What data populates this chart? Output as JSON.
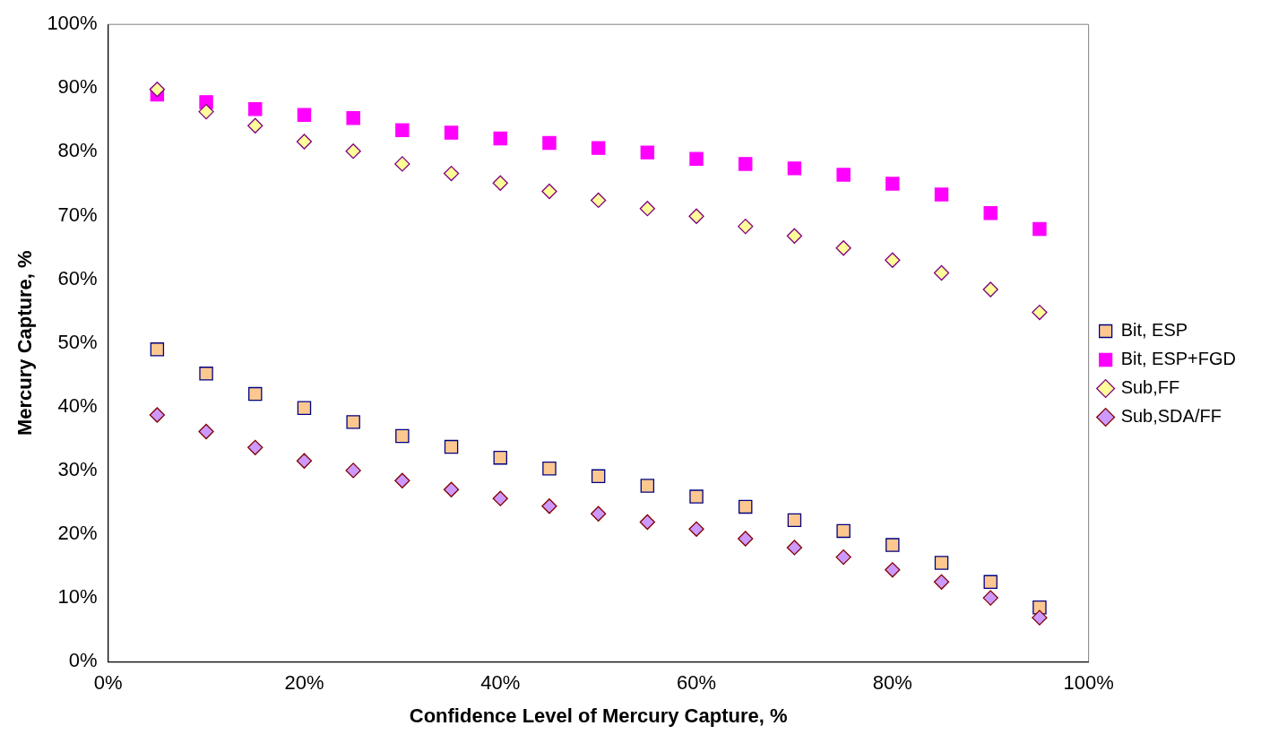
{
  "chart_data": {
    "type": "scatter",
    "xlabel": "Confidence Level of Mercury Capture, %",
    "ylabel": "Mercury Capture, %",
    "xlim": [
      0,
      100
    ],
    "xticks": [
      {
        "value": 0,
        "label": "0%"
      },
      {
        "value": 20,
        "label": "20%"
      },
      {
        "value": 40,
        "label": "40%"
      },
      {
        "value": 60,
        "label": "60%"
      },
      {
        "value": 80,
        "label": "80%"
      },
      {
        "value": 100,
        "label": "100%"
      }
    ],
    "ylim": [
      0,
      100
    ],
    "yticks": [
      {
        "value": 0,
        "label": "0%"
      },
      {
        "value": 10,
        "label": "10%"
      },
      {
        "value": 20,
        "label": "20%"
      },
      {
        "value": 30,
        "label": "30%"
      },
      {
        "value": 40,
        "label": "40%"
      },
      {
        "value": 50,
        "label": "50%"
      },
      {
        "value": 60,
        "label": "60%"
      },
      {
        "value": 70,
        "label": "70%"
      },
      {
        "value": 80,
        "label": "80%"
      },
      {
        "value": 90,
        "label": "90%"
      },
      {
        "value": 100,
        "label": "100%"
      }
    ],
    "grid": false,
    "legend": "right",
    "x": [
      5,
      10,
      15,
      20,
      25,
      30,
      35,
      40,
      45,
      50,
      55,
      60,
      65,
      70,
      75,
      80,
      85,
      90,
      95
    ],
    "series": [
      {
        "name": "Bit, ESP",
        "color": "#fcc890",
        "marker": "square",
        "values": [
          49,
          45.2,
          42,
          39.8,
          37.6,
          35.4,
          33.7,
          32,
          30.3,
          29.1,
          27.6,
          25.9,
          24.3,
          22.2,
          20.5,
          18.3,
          15.5,
          12.5,
          8.5
        ]
      },
      {
        "name": "Bit, ESP+FGD",
        "color": "#ff00ff",
        "marker": "square",
        "values": [
          89,
          87.8,
          86.7,
          85.8,
          85.3,
          83.4,
          83,
          82.1,
          81.4,
          80.6,
          79.9,
          78.9,
          78.1,
          77.4,
          76.4,
          75,
          73.3,
          70.4,
          67.9
        ]
      },
      {
        "name": "Sub,FF",
        "color": "#ffff99",
        "marker": "diamond",
        "values": [
          89.8,
          86.3,
          84.1,
          81.6,
          80.1,
          78.1,
          76.6,
          75.1,
          73.8,
          72.4,
          71.1,
          69.9,
          68.3,
          66.8,
          64.9,
          63,
          61,
          58.4,
          54.8
        ]
      },
      {
        "name": "Sub,SDA/FF",
        "color": "#cc99ff",
        "marker": "diamond",
        "values": [
          38.7,
          36.1,
          33.6,
          31.5,
          30,
          28.4,
          27,
          25.6,
          24.4,
          23.2,
          21.9,
          20.8,
          19.3,
          17.9,
          16.4,
          14.4,
          12.5,
          10,
          6.9
        ]
      }
    ]
  }
}
